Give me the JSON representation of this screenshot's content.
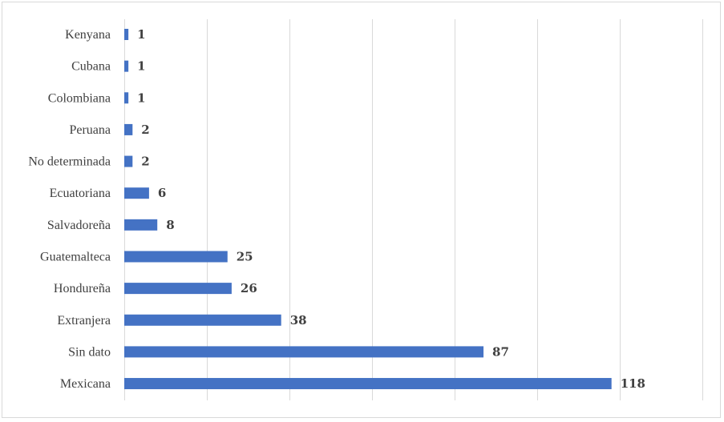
{
  "chart_data": {
    "type": "bar",
    "orientation": "horizontal",
    "categories": [
      "Kenyana",
      "Cubana",
      "Colombiana",
      "Peruana",
      "No determinada",
      "Ecuatoriana",
      "Salvadoreña",
      "Guatemalteca",
      "Hondureña",
      "Extranjera",
      "Sin dato",
      "Mexicana"
    ],
    "values": [
      1,
      1,
      1,
      2,
      2,
      6,
      8,
      25,
      26,
      38,
      87,
      118
    ],
    "value_labels": [
      "1",
      "1",
      "1",
      "2",
      "2",
      "6",
      "8",
      "25",
      "26",
      "38",
      "87",
      "118"
    ],
    "xlim": [
      0,
      140
    ],
    "grid_step": 20,
    "grid": true,
    "legend": "none",
    "bar_color": "#4472c4",
    "grid_color": "#d9d9d9"
  }
}
